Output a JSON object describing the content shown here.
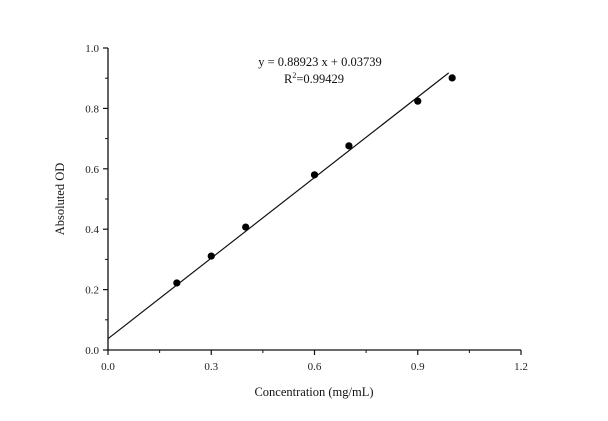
{
  "chart_data": {
    "type": "scatter",
    "title": "",
    "xlabel": "Concentration (mg/mL)",
    "ylabel": "Absoluted OD",
    "xlim": [
      0.0,
      1.2
    ],
    "ylim": [
      0.0,
      1.0
    ],
    "x_ticks": [
      "0.0",
      "0.3",
      "0.6",
      "0.9",
      "1.2"
    ],
    "x_tick_values": [
      0.0,
      0.3,
      0.6,
      0.9,
      1.2
    ],
    "y_ticks": [
      "0.0",
      "0.2",
      "0.4",
      "0.6",
      "0.8",
      "1.0"
    ],
    "y_tick_values": [
      0.0,
      0.2,
      0.4,
      0.6,
      0.8,
      1.0
    ],
    "grid": false,
    "legend": null,
    "series": [
      {
        "name": "Absoluted OD",
        "type": "scatter",
        "x": [
          0.2,
          0.3,
          0.4,
          0.6,
          0.7,
          0.9,
          1.0
        ],
        "y": [
          0.222,
          0.311,
          0.407,
          0.58,
          0.676,
          0.824,
          0.901
        ]
      },
      {
        "name": "Linear fit",
        "type": "line",
        "slope": 0.88923,
        "intercept": 0.03739,
        "x_range": [
          0.0,
          0.99
        ]
      }
    ],
    "annotations": [
      {
        "text": "y = 0.88923 x + 0.03739"
      },
      {
        "text": "R²=0.99429"
      }
    ]
  },
  "labels": {
    "xlabel": "Concentration (mg/mL)",
    "ylabel": "Absoluted OD",
    "equation": "y = 0.88923 x + 0.03739",
    "r2_prefix": "R",
    "r2_sup": "2",
    "r2_value": "=0.99429"
  }
}
